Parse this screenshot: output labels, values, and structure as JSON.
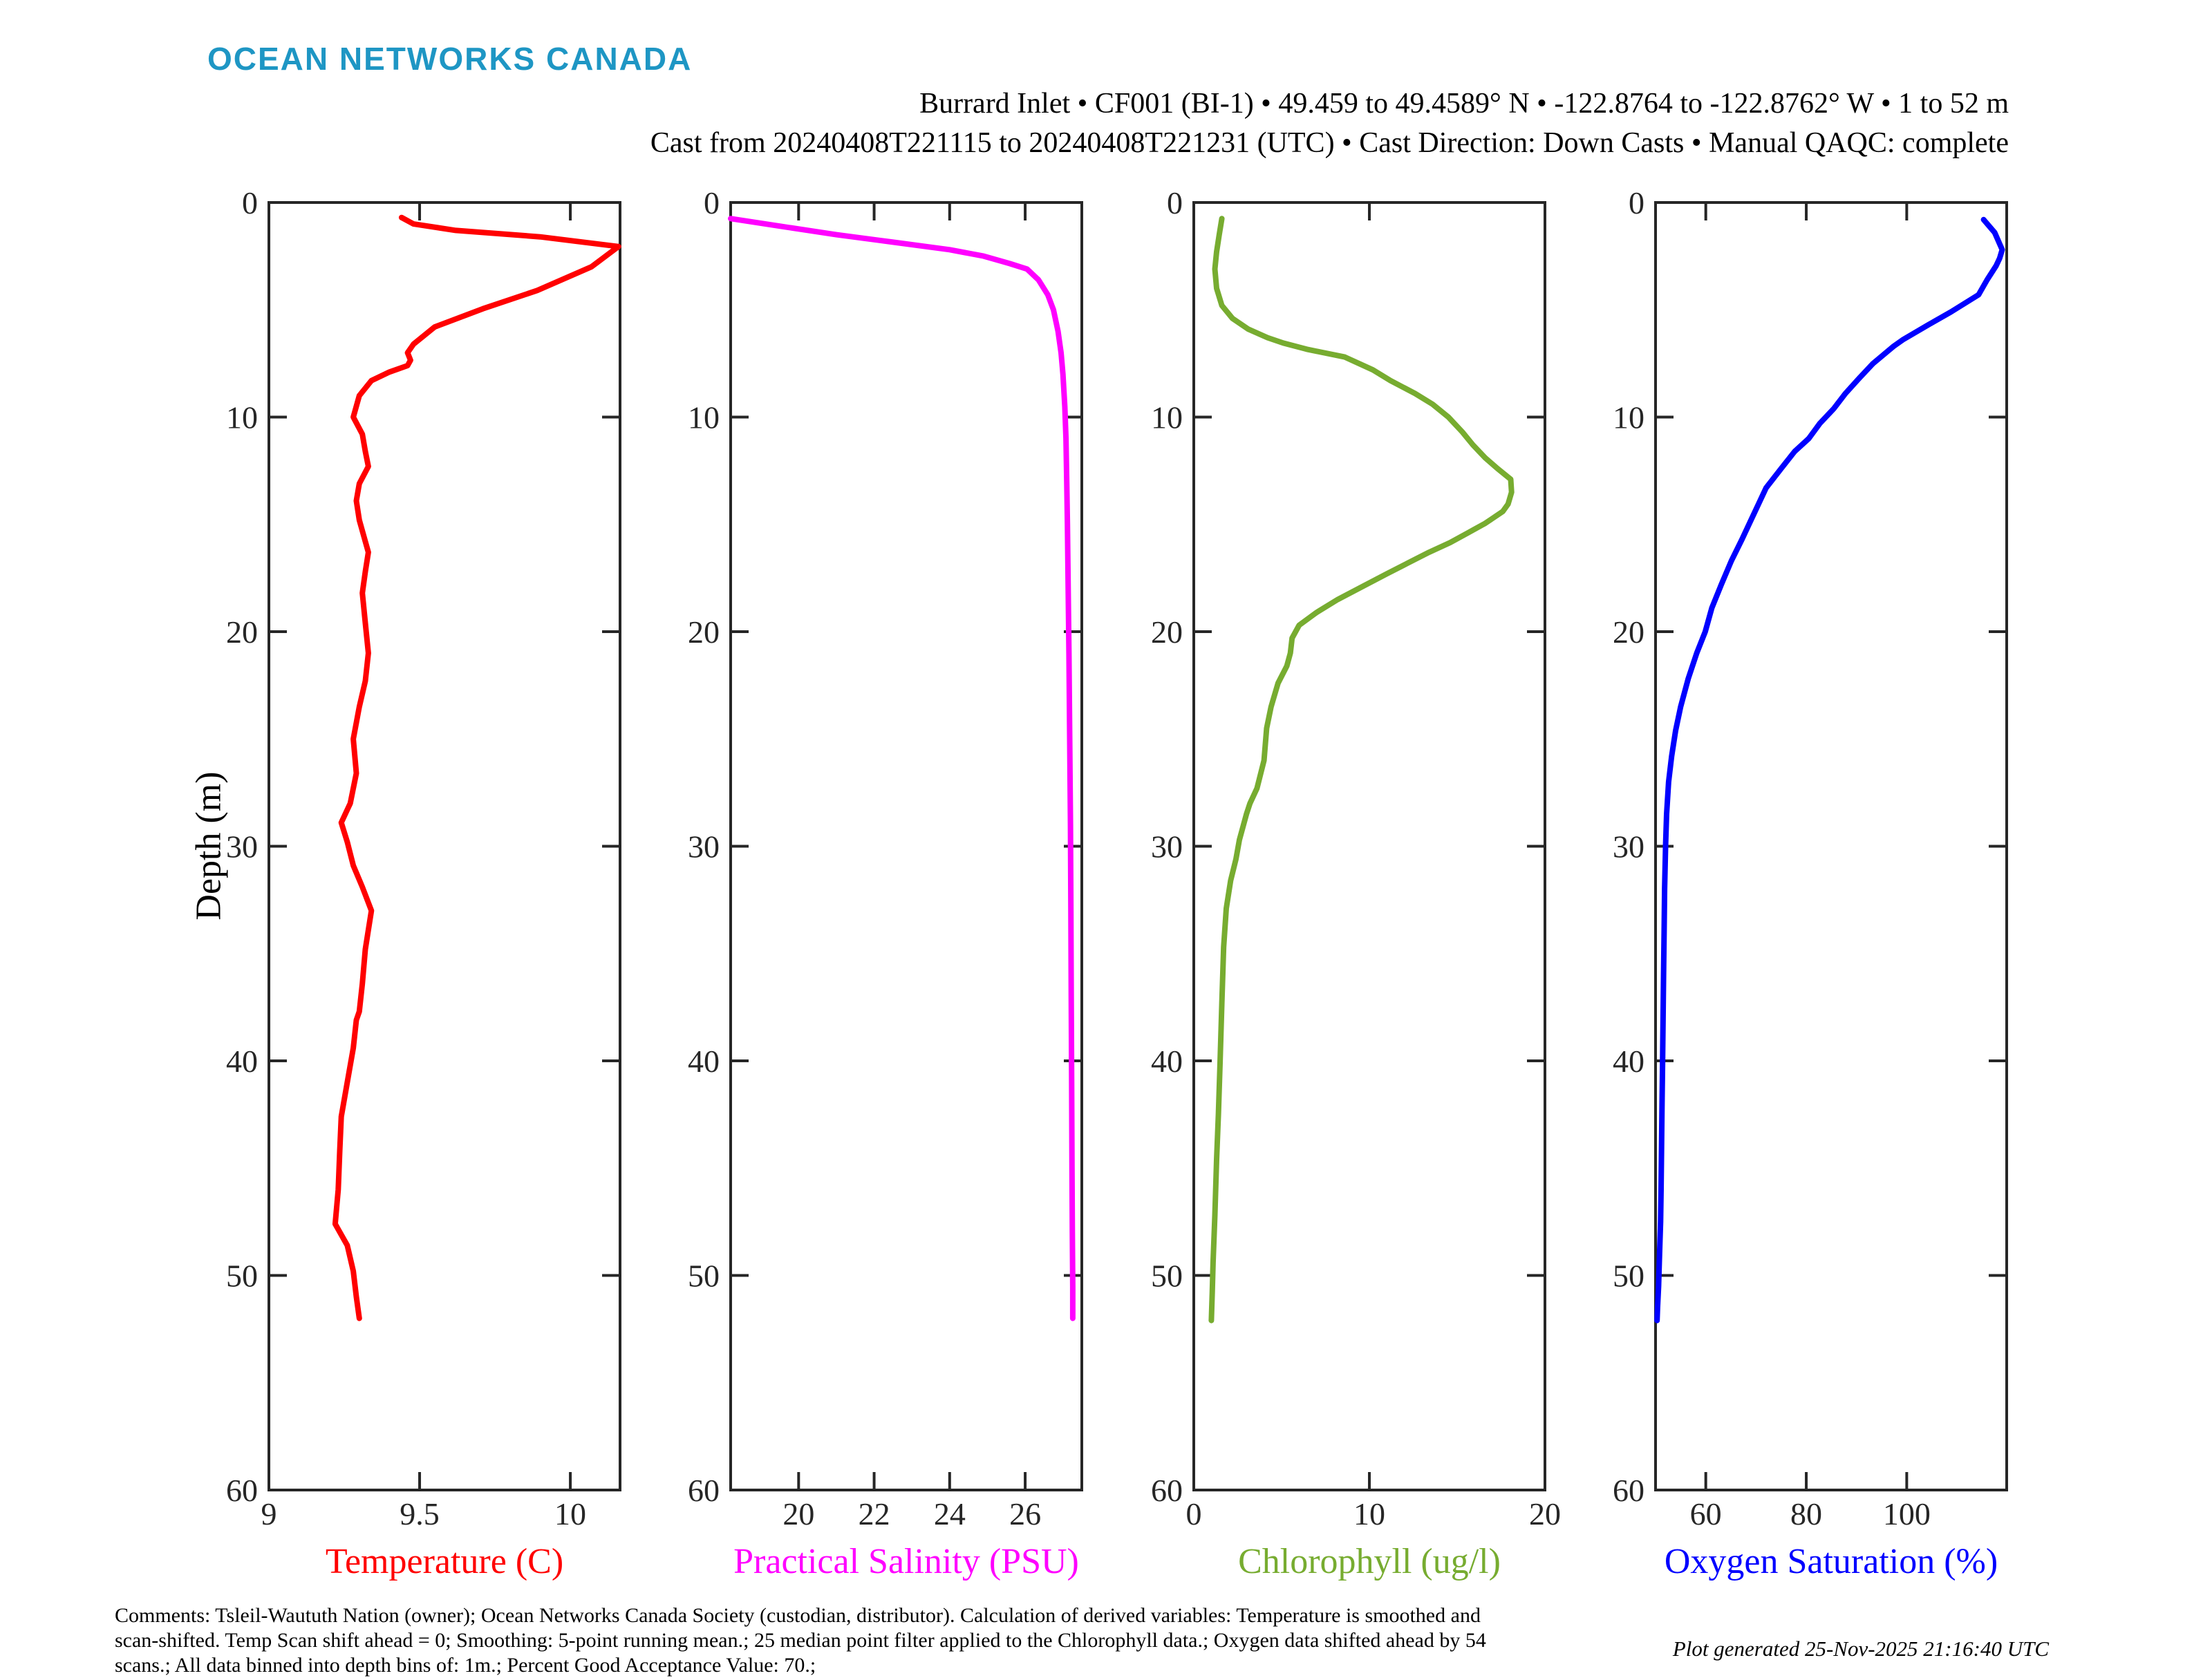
{
  "logo": "OCEAN NETWORKS CANADA",
  "header": {
    "line1": "Burrard Inlet • CF001 (BI-1) • 49.459 to 49.4589° N • -122.8764 to -122.8762° W • 1 to 52 m",
    "line2": "Cast from 20240408T221115 to 20240408T221231 (UTC) • Cast Direction: Down Casts • Manual QAQC: complete"
  },
  "ylabel": "Depth (m)",
  "footer": {
    "comments_line1": "Comments: Tsleil-Waututh Nation (owner); Ocean Networks Canada Society (custodian, distributor). Calculation of derived variables: Temperature is smoothed and",
    "comments_line2": "scan-shifted. Temp Scan shift ahead = 0; Smoothing: 5-point running mean.; 25 median point filter applied to the Chlorophyll data.; Oxygen data shifted ahead by 54",
    "comments_line3": "scans.; All data binned into depth bins of: 1m.; Percent Good Acceptance Value: 70.;",
    "generated": "Plot generated 25-Nov-2025 21:16:40 UTC"
  },
  "colors": {
    "logo": "#1E96C4",
    "axis": "#262626",
    "temperature": "#FF0000",
    "salinity": "#FF00FF",
    "chlorophyll": "#77AC30",
    "oxygen": "#0000FF"
  },
  "chart_data": [
    {
      "type": "line",
      "title": "Temperature profile",
      "xlabel": "Temperature (C)",
      "ylabel": "Depth (m)",
      "color_key": "temperature",
      "xlim": [
        9,
        10.165
      ],
      "xticks": [
        9,
        9.5,
        10
      ],
      "xtick_labels": [
        "9",
        "9.5",
        "10"
      ],
      "ylim": [
        0,
        60
      ],
      "yticks": [
        0,
        10,
        20,
        30,
        40,
        50,
        60
      ],
      "legend": "none",
      "grid": false,
      "series": [
        {
          "name": "Temperature (C)",
          "points": [
            [
              9.44,
              0.7
            ],
            [
              9.48,
              1.0
            ],
            [
              9.62,
              1.3
            ],
            [
              9.9,
              1.6
            ],
            [
              10.16,
              2.05
            ],
            [
              10.07,
              3.0
            ],
            [
              9.89,
              4.1
            ],
            [
              9.71,
              4.95
            ],
            [
              9.55,
              5.8
            ],
            [
              9.48,
              6.6
            ],
            [
              9.46,
              7.0
            ],
            [
              9.47,
              7.35
            ],
            [
              9.46,
              7.6
            ],
            [
              9.4,
              7.9
            ],
            [
              9.34,
              8.3
            ],
            [
              9.3,
              9.0
            ],
            [
              9.28,
              10.0
            ],
            [
              9.31,
              10.8
            ],
            [
              9.32,
              11.6
            ],
            [
              9.33,
              12.3
            ],
            [
              9.3,
              13.1
            ],
            [
              9.29,
              13.9
            ],
            [
              9.3,
              14.8
            ],
            [
              9.32,
              15.8
            ],
            [
              9.33,
              16.3
            ],
            [
              9.32,
              17.2
            ],
            [
              9.31,
              18.2
            ],
            [
              9.32,
              19.6
            ],
            [
              9.33,
              21.0
            ],
            [
              9.32,
              22.3
            ],
            [
              9.3,
              23.5
            ],
            [
              9.28,
              25.0
            ],
            [
              9.29,
              26.6
            ],
            [
              9.27,
              28.0
            ],
            [
              9.24,
              28.9
            ],
            [
              9.26,
              29.8
            ],
            [
              9.28,
              30.9
            ],
            [
              9.31,
              31.9
            ],
            [
              9.34,
              33.0
            ],
            [
              9.33,
              33.9
            ],
            [
              9.32,
              34.8
            ],
            [
              9.31,
              36.4
            ],
            [
              9.3,
              37.7
            ],
            [
              9.29,
              38.1
            ],
            [
              9.28,
              39.4
            ],
            [
              9.26,
              41.0
            ],
            [
              9.24,
              42.6
            ],
            [
              9.235,
              44.2
            ],
            [
              9.23,
              46.0
            ],
            [
              9.22,
              47.6
            ],
            [
              9.26,
              48.6
            ],
            [
              9.28,
              49.8
            ],
            [
              9.29,
              51.0
            ],
            [
              9.3,
              52.0
            ]
          ]
        }
      ]
    },
    {
      "type": "line",
      "title": "Practical Salinity profile",
      "xlabel": "Practical Salinity (PSU)",
      "ylabel": "Depth (m)",
      "color_key": "salinity",
      "xlim": [
        18.2,
        27.5
      ],
      "xticks": [
        20,
        22,
        24,
        26
      ],
      "xtick_labels": [
        "20",
        "22",
        "24",
        "26"
      ],
      "ylim": [
        0,
        60
      ],
      "yticks": [
        0,
        10,
        20,
        30,
        40,
        50,
        60
      ],
      "legend": "none",
      "grid": false,
      "series": [
        {
          "name": "Practical Salinity (PSU)",
          "points": [
            [
              18.2,
              0.75
            ],
            [
              19.5,
              1.1
            ],
            [
              21.0,
              1.5
            ],
            [
              22.5,
              1.85
            ],
            [
              24.0,
              2.2
            ],
            [
              24.9,
              2.5
            ],
            [
              25.6,
              2.85
            ],
            [
              26.05,
              3.1
            ],
            [
              26.35,
              3.6
            ],
            [
              26.6,
              4.3
            ],
            [
              26.75,
              5.0
            ],
            [
              26.87,
              6.0
            ],
            [
              26.95,
              7.0
            ],
            [
              27.0,
              8.0
            ],
            [
              27.05,
              9.5
            ],
            [
              27.08,
              11.0
            ],
            [
              27.1,
              13.0
            ],
            [
              27.12,
              15.0
            ],
            [
              27.14,
              18.0
            ],
            [
              27.16,
              21.0
            ],
            [
              27.18,
              25.0
            ],
            [
              27.2,
              29.0
            ],
            [
              27.21,
              33.0
            ],
            [
              27.22,
              37.0
            ],
            [
              27.23,
              41.0
            ],
            [
              27.24,
              45.0
            ],
            [
              27.25,
              48.0
            ],
            [
              27.26,
              50.5
            ],
            [
              27.26,
              52.0
            ]
          ]
        }
      ]
    },
    {
      "type": "line",
      "title": "Chlorophyll profile",
      "xlabel": "Chlorophyll (ug/l)",
      "ylabel": "Depth (m)",
      "color_key": "chlorophyll",
      "xlim": [
        0,
        20
      ],
      "xticks": [
        0,
        10,
        20
      ],
      "xtick_labels": [
        "0",
        "10",
        "20"
      ],
      "ylim": [
        0,
        60
      ],
      "yticks": [
        0,
        10,
        20,
        30,
        40,
        50,
        60
      ],
      "legend": "none",
      "grid": false,
      "series": [
        {
          "name": "Chlorophyll (ug/l)",
          "points": [
            [
              1.6,
              0.75
            ],
            [
              1.45,
              1.5
            ],
            [
              1.3,
              2.3
            ],
            [
              1.2,
              3.1
            ],
            [
              1.3,
              4.0
            ],
            [
              1.6,
              4.8
            ],
            [
              2.2,
              5.4
            ],
            [
              3.1,
              5.9
            ],
            [
              4.2,
              6.3
            ],
            [
              5.1,
              6.55
            ],
            [
              6.5,
              6.85
            ],
            [
              8.6,
              7.2
            ],
            [
              10.2,
              7.8
            ],
            [
              11.2,
              8.3
            ],
            [
              12.6,
              8.9
            ],
            [
              13.6,
              9.4
            ],
            [
              14.5,
              10.0
            ],
            [
              15.3,
              10.7
            ],
            [
              15.9,
              11.3
            ],
            [
              16.6,
              11.9
            ],
            [
              17.3,
              12.4
            ],
            [
              18.05,
              12.9
            ],
            [
              18.1,
              13.5
            ],
            [
              17.9,
              14.05
            ],
            [
              17.6,
              14.4
            ],
            [
              16.6,
              14.95
            ],
            [
              15.6,
              15.4
            ],
            [
              14.6,
              15.85
            ],
            [
              13.4,
              16.3
            ],
            [
              12.2,
              16.8
            ],
            [
              11.0,
              17.3
            ],
            [
              9.6,
              17.9
            ],
            [
              8.2,
              18.5
            ],
            [
              7.0,
              19.1
            ],
            [
              6.0,
              19.7
            ],
            [
              5.6,
              20.3
            ],
            [
              5.5,
              21.0
            ],
            [
              5.3,
              21.6
            ],
            [
              4.8,
              22.4
            ],
            [
              4.4,
              23.5
            ],
            [
              4.15,
              24.5
            ],
            [
              4.0,
              26.0
            ],
            [
              3.6,
              27.3
            ],
            [
              3.2,
              28.0
            ],
            [
              3.0,
              28.5
            ],
            [
              2.6,
              29.7
            ],
            [
              2.4,
              30.6
            ],
            [
              2.1,
              31.6
            ],
            [
              1.85,
              32.9
            ],
            [
              1.7,
              34.7
            ],
            [
              1.6,
              37.3
            ],
            [
              1.5,
              40.0
            ],
            [
              1.4,
              42.5
            ],
            [
              1.3,
              44.6
            ],
            [
              1.2,
              47.2
            ],
            [
              1.1,
              49.4
            ],
            [
              1.05,
              50.8
            ],
            [
              1.0,
              52.1
            ]
          ]
        }
      ]
    },
    {
      "type": "line",
      "title": "Oxygen Saturation profile",
      "xlabel": "Oxygen Saturation (%)",
      "ylabel": "Depth (m)",
      "color_key": "oxygen",
      "xlim": [
        50,
        119.9
      ],
      "xticks": [
        60,
        80,
        100
      ],
      "xtick_labels": [
        "60",
        "80",
        "100"
      ],
      "ylim": [
        0,
        60
      ],
      "yticks": [
        0,
        10,
        20,
        30,
        40,
        50,
        60
      ],
      "legend": "none",
      "grid": false,
      "series": [
        {
          "name": "Oxygen Saturation (%)",
          "points": [
            [
              115.3,
              0.8
            ],
            [
              117.5,
              1.4
            ],
            [
              119.0,
              2.2
            ],
            [
              118.5,
              2.6
            ],
            [
              117.8,
              2.95
            ],
            [
              116.0,
              3.6
            ],
            [
              114.3,
              4.3
            ],
            [
              108.8,
              5.1
            ],
            [
              104.3,
              5.7
            ],
            [
              99.2,
              6.4
            ],
            [
              97.4,
              6.7
            ],
            [
              93.3,
              7.5
            ],
            [
              90.5,
              8.2
            ],
            [
              87.8,
              8.9
            ],
            [
              85.5,
              9.6
            ],
            [
              82.7,
              10.3
            ],
            [
              80.5,
              11.0
            ],
            [
              77.7,
              11.6
            ],
            [
              75.0,
              12.4
            ],
            [
              72.0,
              13.3
            ],
            [
              69.0,
              14.8
            ],
            [
              67.2,
              15.7
            ],
            [
              65.1,
              16.7
            ],
            [
              63.1,
              17.8
            ],
            [
              61.2,
              18.9
            ],
            [
              59.9,
              20.0
            ],
            [
              58.2,
              21.0
            ],
            [
              56.5,
              22.2
            ],
            [
              55.0,
              23.5
            ],
            [
              54.0,
              24.6
            ],
            [
              53.2,
              25.8
            ],
            [
              52.6,
              27.0
            ],
            [
              52.2,
              28.5
            ],
            [
              52.0,
              30.0
            ],
            [
              51.8,
              32.0
            ],
            [
              51.7,
              34.0
            ],
            [
              51.6,
              36.0
            ],
            [
              51.5,
              38.0
            ],
            [
              51.4,
              40.0
            ],
            [
              51.3,
              42.0
            ],
            [
              51.2,
              44.0
            ],
            [
              51.1,
              46.0
            ],
            [
              51.0,
              47.5
            ],
            [
              50.8,
              49.0
            ],
            [
              50.6,
              50.5
            ],
            [
              50.4,
              51.5
            ],
            [
              50.3,
              52.1
            ]
          ]
        }
      ]
    }
  ]
}
